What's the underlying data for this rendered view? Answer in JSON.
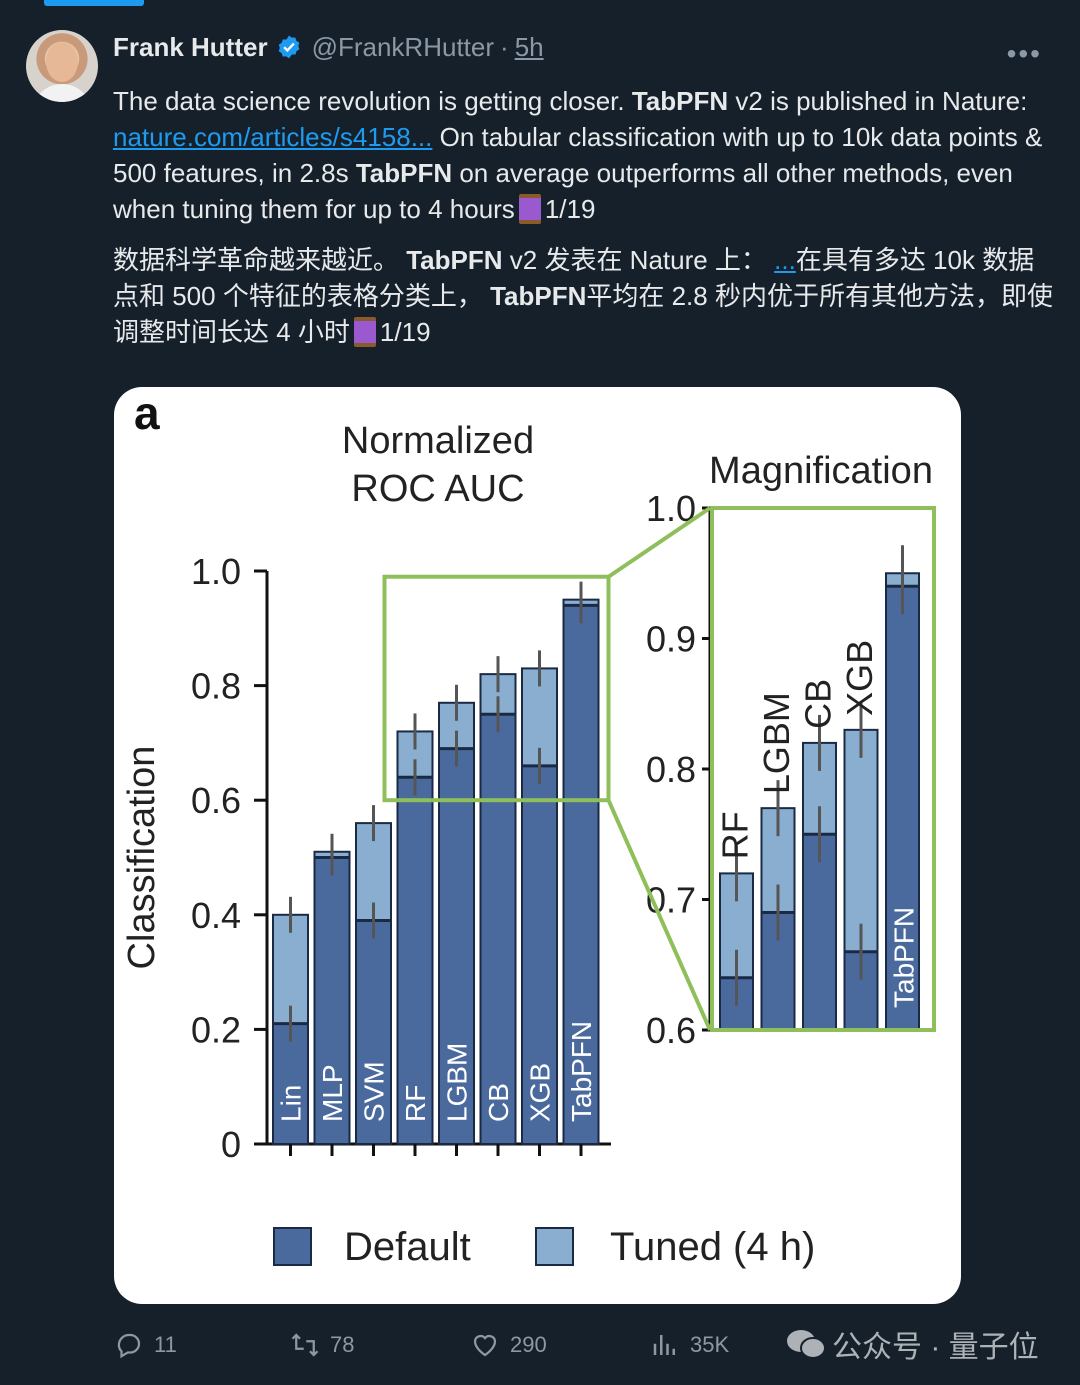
{
  "tweet": {
    "author_name": "Frank Hutter",
    "handle": "@FrankRHutter",
    "separator": "·",
    "time": "5h",
    "more": "•••",
    "en": {
      "t1": "The data science revolution is getting closer. ",
      "b1": "TabPFN",
      "t2": " v2 is published in Nature: ",
      "link": "nature.com/articles/s4158...",
      "t3": " On tabular classification with up to 10k data points & 500 features, in 2.8s ",
      "b2": "TabPFN",
      "t4": " on average outperforms all other methods, even when tuning them for up to 4 hours",
      "thread": "1/19"
    },
    "zh": {
      "t1": "数据科学革命越来越近。 ",
      "b1": "TabPFN",
      "t2": " v2 发表在 Nature 上： ",
      "link": "...",
      "t3": "在具有多达 10k 数据点和 500 个特征的表格分类上， ",
      "b2": "TabPFN",
      "t4": "平均在 2.8 秒内优于所有其他方法，即使调整时间长达 4 小时",
      "thread": "1/19"
    }
  },
  "chart_data": {
    "type": "bar",
    "panel_label": "a",
    "title": "Normalized ROC AUC",
    "title_lines": [
      "Normalized",
      "ROC AUC"
    ],
    "ylabel": "Classification",
    "ylim": [
      0,
      1.0
    ],
    "yticks": [
      "0",
      "0.2",
      "0.4",
      "0.6",
      "0.8",
      "1.0"
    ],
    "categories": [
      "Lin",
      "MLP",
      "SVM",
      "RF",
      "LGBM",
      "CB",
      "XGB",
      "TabPFN"
    ],
    "series": [
      {
        "name": "Default",
        "color": "#4a6a9e",
        "values": [
          0.21,
          0.5,
          0.39,
          0.64,
          0.69,
          0.75,
          0.66,
          0.94
        ]
      },
      {
        "name": "Tuned (4 h)",
        "color": "#8aaed0",
        "values": [
          0.4,
          0.51,
          0.56,
          0.72,
          0.77,
          0.82,
          0.83,
          0.95
        ]
      }
    ],
    "legend": {
      "position": "bottom",
      "labels": [
        "Default",
        "Tuned (4 h)"
      ]
    },
    "inset": {
      "title": "Magnification",
      "ylim": [
        0.6,
        1.0
      ],
      "yticks": [
        "0.6",
        "0.7",
        "0.8",
        "0.9",
        "1.0"
      ],
      "categories": [
        "RF",
        "LGBM",
        "CB",
        "XGB",
        "TabPFN"
      ],
      "frame_color": "#8fbf5a"
    }
  },
  "actions": {
    "replies": "11",
    "retweets": "78",
    "likes": "290",
    "views": "35K"
  },
  "watermark": "公众号 · 量子位",
  "colors": {
    "background": "#15202b",
    "link": "#1d9bf0",
    "muted": "#8b98a5"
  }
}
